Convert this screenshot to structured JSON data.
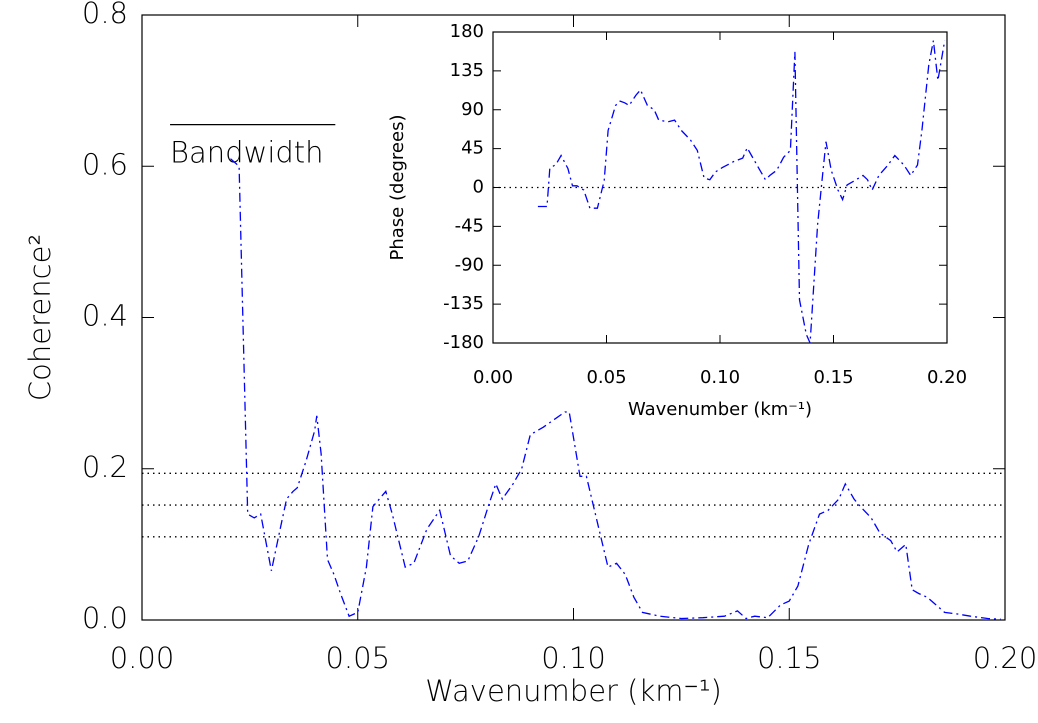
{
  "chart_data": [
    {
      "type": "line",
      "x_label": "Wavenumber (km⁻¹)",
      "y_label": "Coherence²",
      "xlim": [
        0,
        0.2
      ],
      "ylim": [
        0,
        0.8
      ],
      "xticks": [
        {
          "value": 0,
          "label": "0.00"
        },
        {
          "value": 0.05,
          "label": "0.05"
        },
        {
          "value": 0.1,
          "label": "0.10"
        },
        {
          "value": 0.15,
          "label": "0.15"
        },
        {
          "value": 0.2,
          "label": "0.20"
        }
      ],
      "yticks": [
        {
          "value": 0,
          "label": "0.0"
        },
        {
          "value": 0.2,
          "label": "0.2"
        },
        {
          "value": 0.4,
          "label": "0.4"
        },
        {
          "value": 0.6,
          "label": "0.6"
        },
        {
          "value": 0.8,
          "label": "0.8"
        }
      ],
      "color": "#0000ff",
      "line_style": "dash-dot",
      "hlines": [
        0.194,
        0.152,
        0.11
      ],
      "bandwidth": {
        "label": "Bandwidth",
        "x": [
          0.0065,
          0.0448
        ],
        "y": 0.655
      },
      "x": [
        0.0205,
        0.0225,
        0.0245,
        0.026,
        0.0275,
        0.03,
        0.032,
        0.0335,
        0.035,
        0.036,
        0.038,
        0.04,
        0.0405,
        0.0415,
        0.043,
        0.0445,
        0.046,
        0.048,
        0.05,
        0.052,
        0.0535,
        0.055,
        0.0565,
        0.058,
        0.061,
        0.063,
        0.066,
        0.069,
        0.0715,
        0.0735,
        0.0755,
        0.078,
        0.0805,
        0.082,
        0.0835,
        0.086,
        0.088,
        0.09,
        0.093,
        0.0955,
        0.098,
        0.099,
        0.1015,
        0.103,
        0.1055,
        0.108,
        0.11,
        0.112,
        0.114,
        0.116,
        0.12,
        0.125,
        0.13,
        0.135,
        0.138,
        0.14,
        0.142,
        0.145,
        0.148,
        0.15,
        0.152,
        0.1545,
        0.157,
        0.159,
        0.1615,
        0.163,
        0.165,
        0.1665,
        0.169,
        0.171,
        0.1735,
        0.175,
        0.177,
        0.1785,
        0.18,
        0.182,
        0.184,
        0.186,
        0.189,
        0.192,
        0.196,
        0.199
      ],
      "values": [
        0.61,
        0.6,
        0.14,
        0.135,
        0.14,
        0.065,
        0.12,
        0.16,
        0.17,
        0.175,
        0.21,
        0.25,
        0.27,
        0.22,
        0.08,
        0.06,
        0.035,
        0.005,
        0.01,
        0.07,
        0.15,
        0.16,
        0.17,
        0.14,
        0.07,
        0.075,
        0.12,
        0.145,
        0.085,
        0.075,
        0.078,
        0.11,
        0.155,
        0.18,
        0.16,
        0.18,
        0.2,
        0.245,
        0.255,
        0.265,
        0.275,
        0.275,
        0.19,
        0.19,
        0.13,
        0.07,
        0.075,
        0.06,
        0.03,
        0.01,
        0.005,
        0.002,
        0.003,
        0.005,
        0.012,
        0.002,
        0.005,
        0.003,
        0.02,
        0.025,
        0.045,
        0.1,
        0.14,
        0.145,
        0.16,
        0.18,
        0.16,
        0.15,
        0.135,
        0.115,
        0.105,
        0.09,
        0.1,
        0.04,
        0.035,
        0.03,
        0.02,
        0.01,
        0.008,
        0.005,
        0.002,
        0.001
      ]
    },
    {
      "type": "line",
      "x_label": "Wavenumber (km⁻¹)",
      "y_label": "Phase (degrees)",
      "xlim": [
        0,
        0.2
      ],
      "ylim": [
        -180,
        180
      ],
      "xticks": [
        {
          "value": 0,
          "label": "0.00"
        },
        {
          "value": 0.05,
          "label": "0.05"
        },
        {
          "value": 0.1,
          "label": "0.10"
        },
        {
          "value": 0.15,
          "label": "0.15"
        },
        {
          "value": 0.2,
          "label": "0.20"
        }
      ],
      "yticks": [
        180,
        135,
        90,
        45,
        0,
        -45,
        -90,
        -135,
        -180
      ],
      "color": "#0000ff",
      "line_style": "dash-dot",
      "hlines": [
        0
      ],
      "x": [
        0.0198,
        0.0238,
        0.025,
        0.0278,
        0.03,
        0.033,
        0.035,
        0.037,
        0.04,
        0.0427,
        0.046,
        0.049,
        0.0507,
        0.054,
        0.056,
        0.058,
        0.06,
        0.063,
        0.065,
        0.068,
        0.071,
        0.073,
        0.077,
        0.08,
        0.083,
        0.087,
        0.09,
        0.093,
        0.0955,
        0.098,
        0.101,
        0.106,
        0.11,
        0.112,
        0.115,
        0.118,
        0.12,
        0.122,
        0.125,
        0.128,
        0.131,
        0.133,
        0.135,
        0.138,
        0.1397,
        0.143,
        0.145,
        0.1467,
        0.149,
        0.152,
        0.154,
        0.156,
        0.16,
        0.163,
        0.165,
        0.167,
        0.17,
        0.174,
        0.177,
        0.181,
        0.184,
        0.187,
        0.189,
        0.192,
        0.194,
        0.196,
        0.199
      ],
      "values": [
        -22,
        -22,
        22,
        27,
        37,
        22,
        2,
        2,
        -3,
        -24,
        -24,
        8,
        66,
        95,
        100,
        98,
        95,
        107,
        113,
        95,
        90,
        78,
        76,
        78,
        66,
        55,
        43,
        11,
        9,
        18,
        23,
        30,
        34,
        46,
        32,
        18,
        9,
        14,
        20,
        35,
        43,
        157,
        -130,
        -170,
        -180,
        -43,
        9,
        53,
        20,
        -3,
        -14,
        3,
        9,
        14,
        9,
        -3,
        14,
        26,
        37,
        26,
        14,
        26,
        67,
        142,
        170,
        124,
        170
      ]
    }
  ]
}
